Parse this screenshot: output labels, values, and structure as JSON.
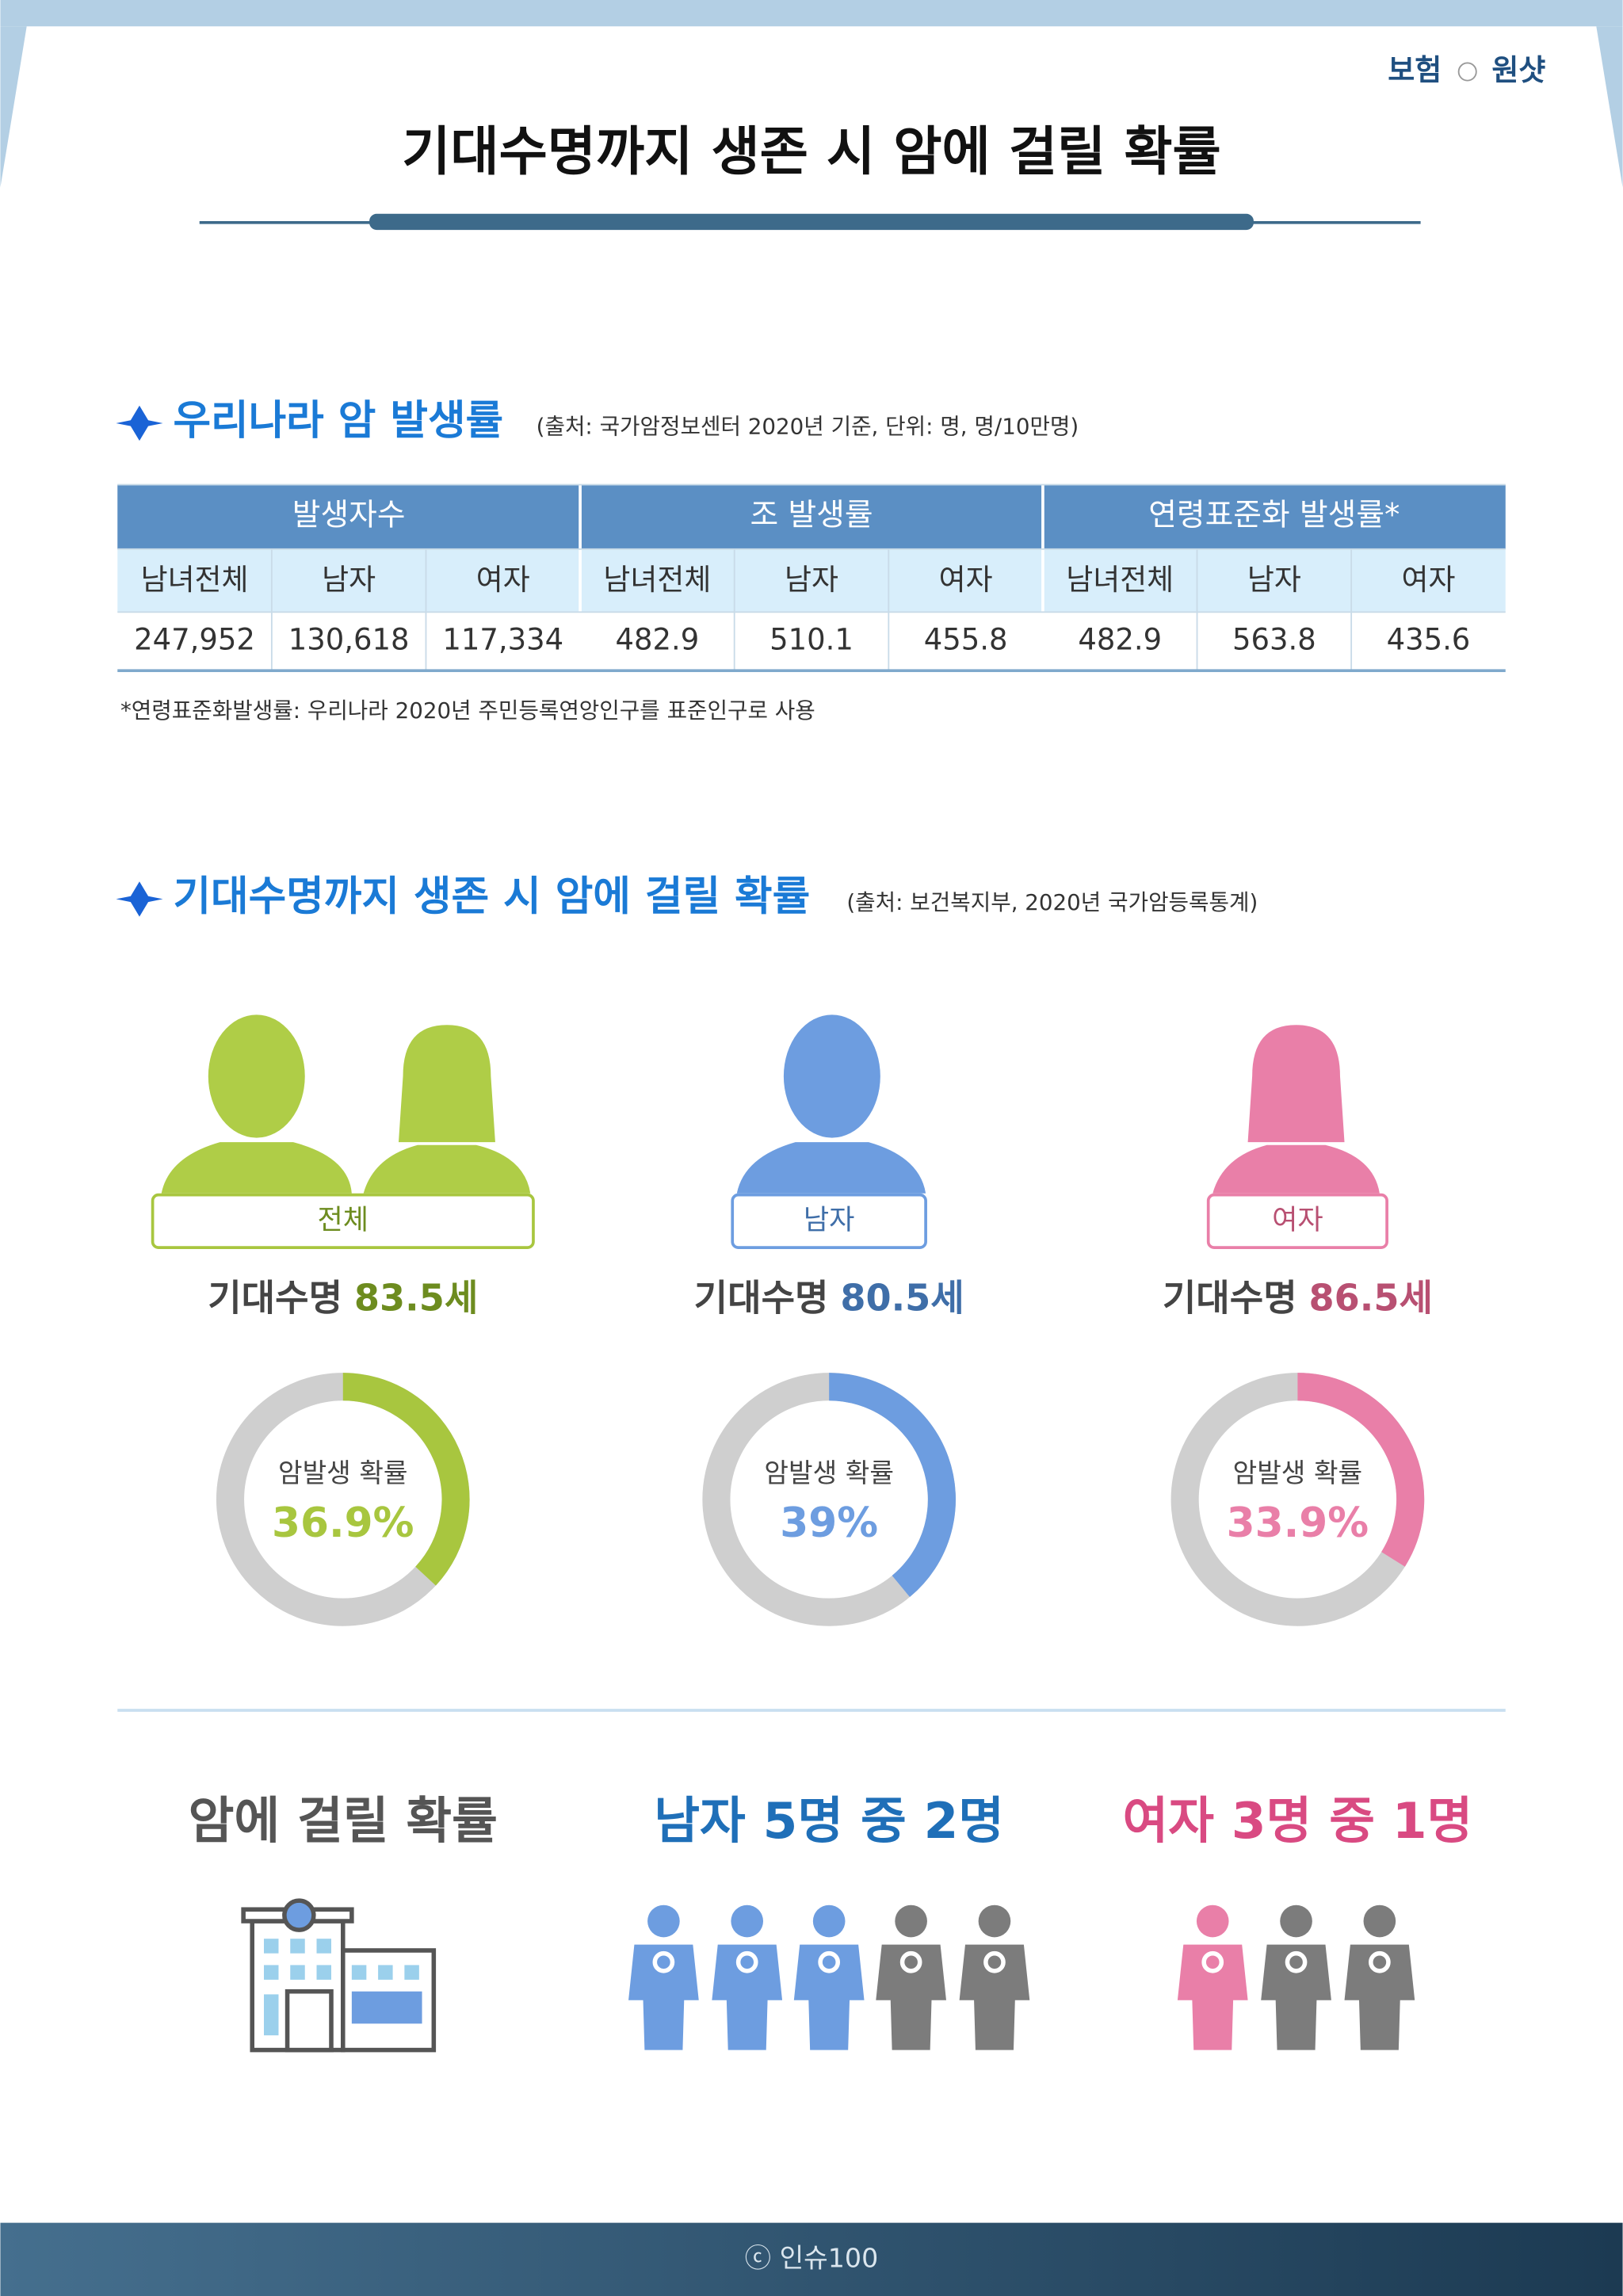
{
  "header": {
    "brand": "보험",
    "brand2": "원샷",
    "title": "기대수명까지 생존 시 암에 걸릴 확률"
  },
  "section1": {
    "title": "우리나라 암 발생률",
    "source": "(출처: 국가암정보센터 2020년 기준, 단위: 명, 명/10만명)",
    "table": {
      "groups": [
        "발생자수",
        "조 발생률",
        "연령표준화 발생률*"
      ],
      "subheaders": [
        "남녀전체",
        "남자",
        "여자",
        "남녀전체",
        "남자",
        "여자",
        "남녀전체",
        "남자",
        "여자"
      ],
      "values": [
        "247,952",
        "130,618",
        "117,334",
        "482.9",
        "510.1",
        "455.8",
        "482.9",
        "563.8",
        "435.6"
      ]
    },
    "note": "*연령표준화발생률: 우리나라 2020년 주민등록연앙인구를 표준인구로 사용"
  },
  "section2": {
    "title": "기대수명까지 생존 시 암에 걸릴 확률",
    "source": "(출처: 보건복지부, 2020년 국가암등록통계)",
    "groups": [
      {
        "label": "전체",
        "life_label": "기대수명",
        "life": "83.5세",
        "ring_label": "암발생 확률",
        "value": 36.9,
        "value_label": "36.9%",
        "color": "#a8c63f",
        "dark": "#6d8c1f"
      },
      {
        "label": "남자",
        "life_label": "기대수명",
        "life": "80.5세",
        "ring_label": "암발생 확률",
        "value": 39,
        "value_label": "39%",
        "color": "#6d9de0",
        "dark": "#3f6ea8"
      },
      {
        "label": "여자",
        "life_label": "기대수명",
        "life": "86.5세",
        "ring_label": "암발생 확률",
        "value": 33.9,
        "value_label": "33.9%",
        "color": "#e97fa8",
        "dark": "#b85072"
      }
    ]
  },
  "section3": {
    "title": "암에 걸릴 확률",
    "male": "남자 5명 중 2명",
    "female": "여자 3명 중 1명"
  },
  "footer": "ⓒ 인슈100"
}
